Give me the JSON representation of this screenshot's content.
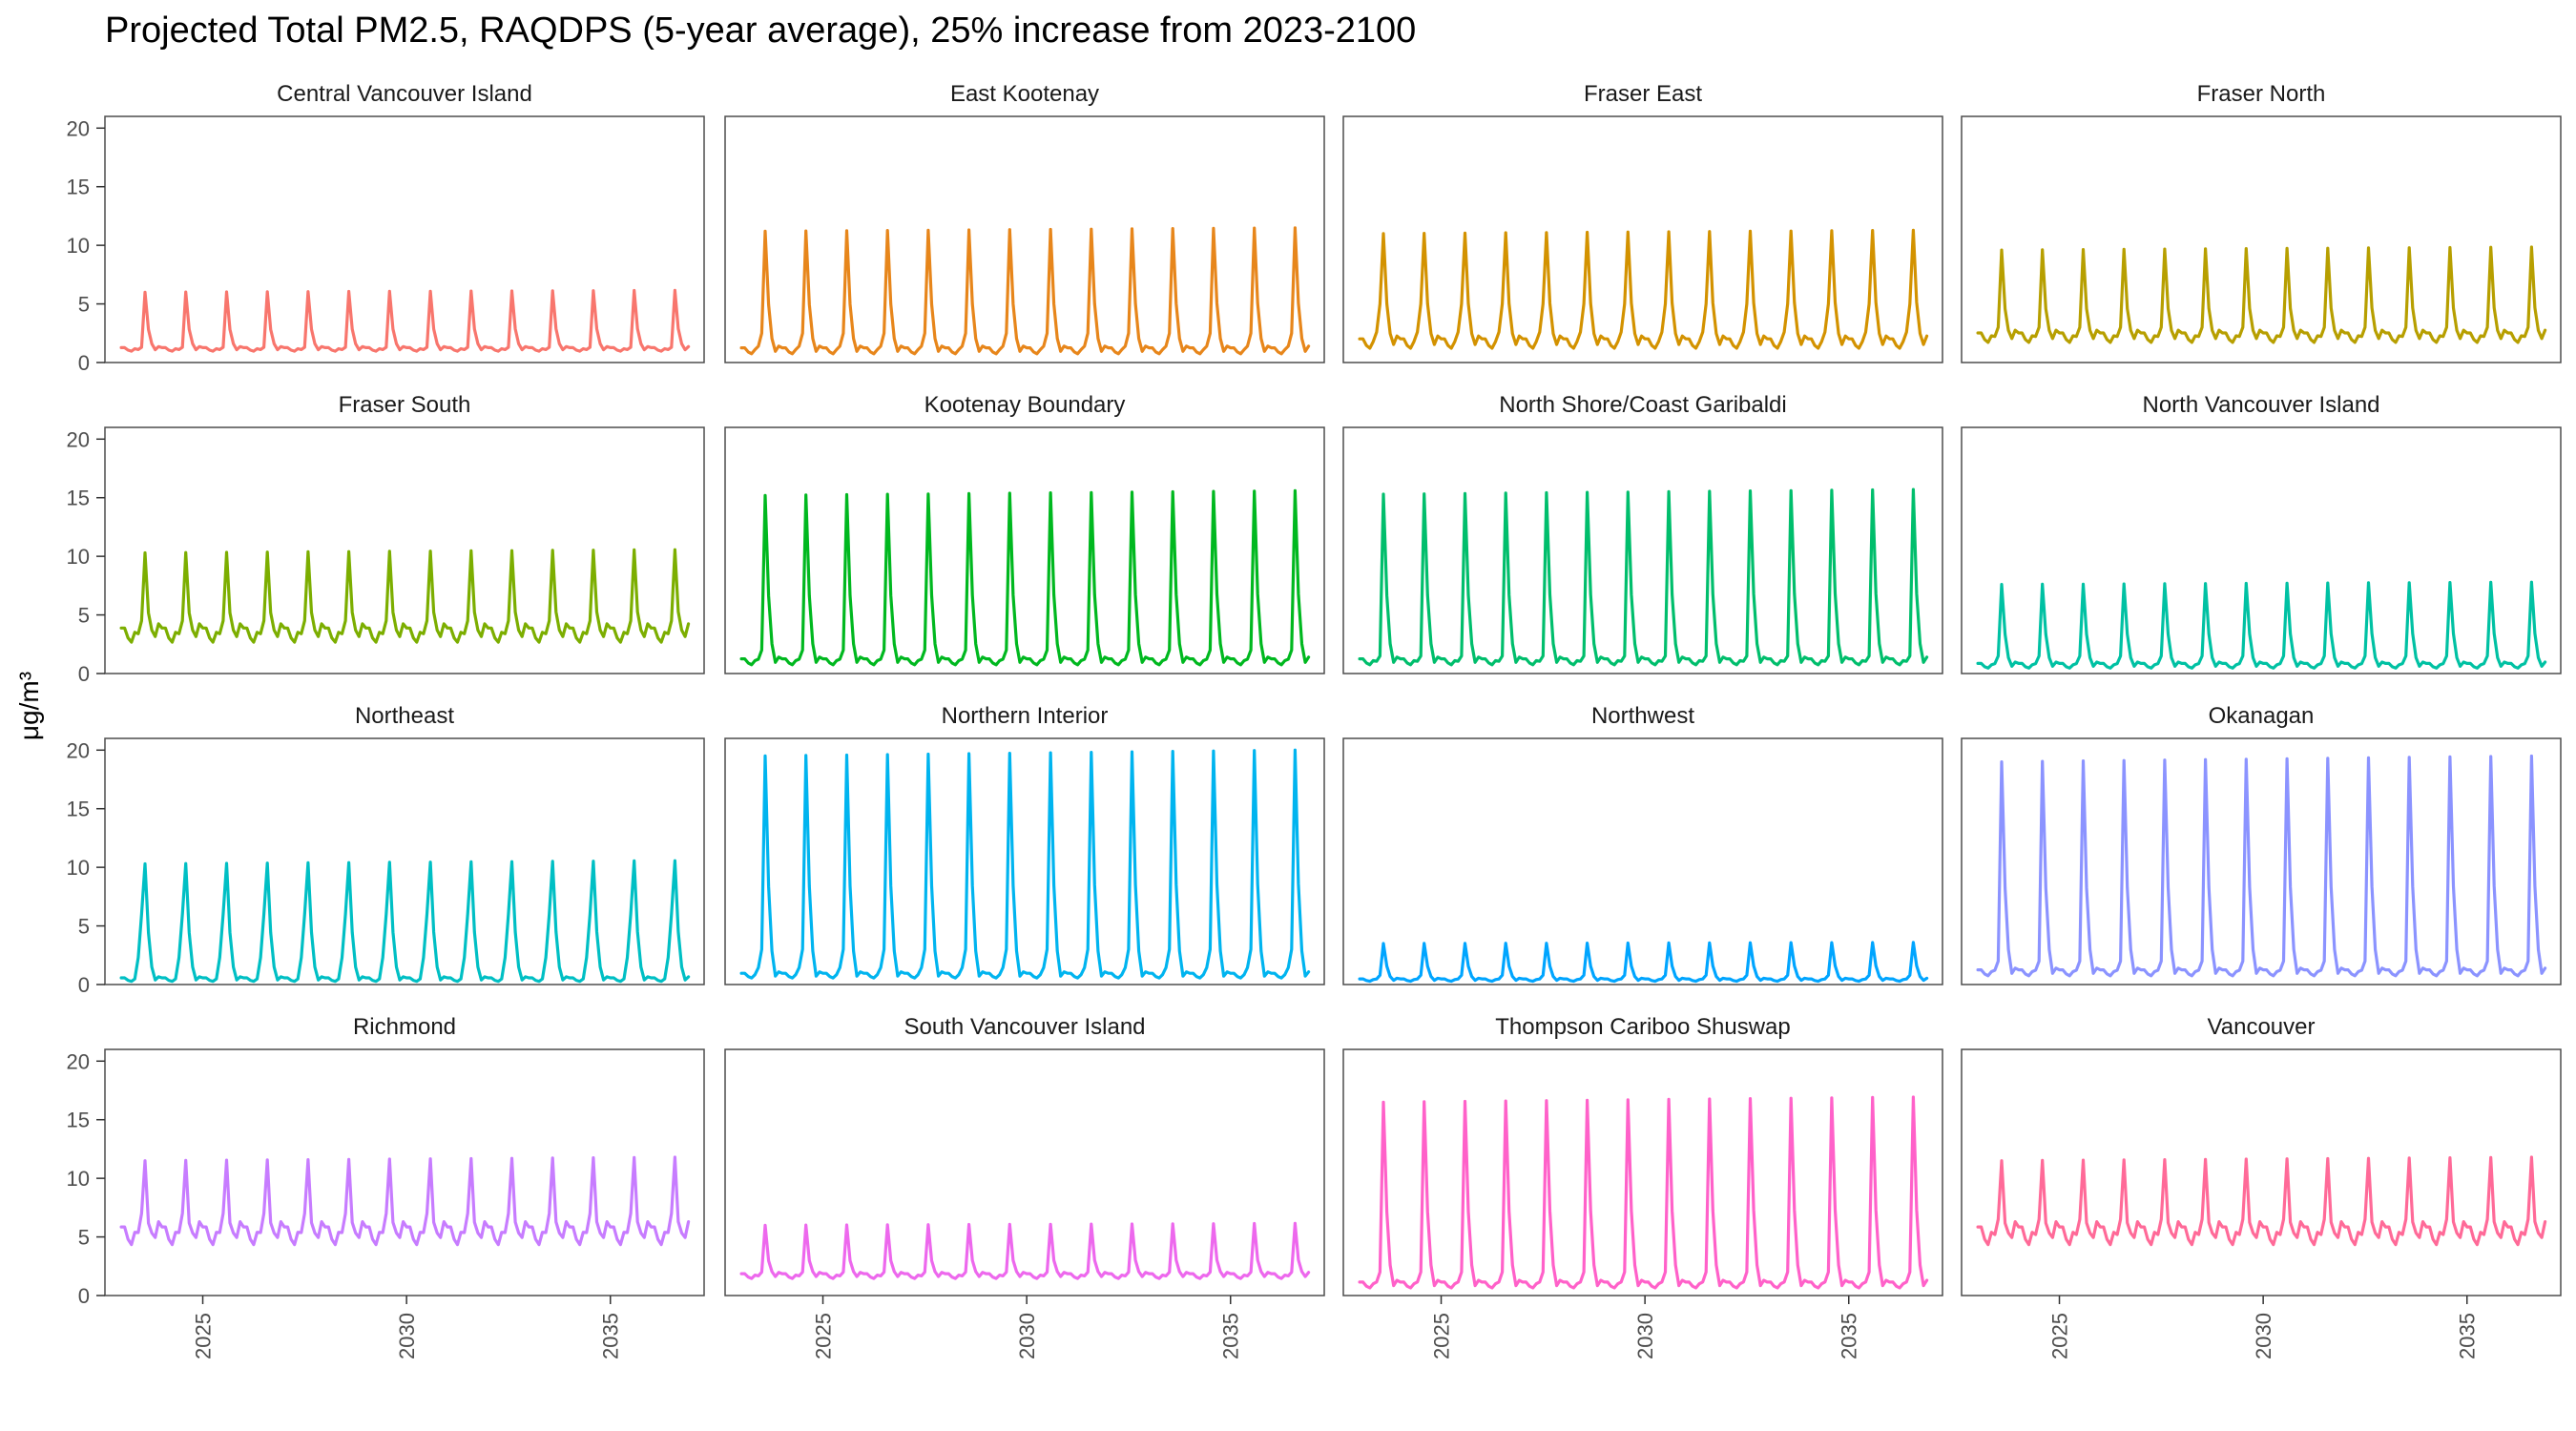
{
  "chart_data": {
    "type": "line",
    "title": "Projected Total PM2.5, RAQDPS (5-year average), 25% increase from 2023-2100",
    "ylabel": "μg/m³",
    "xlabel": "",
    "ylim": [
      0,
      21
    ],
    "yticks": [
      0,
      5,
      10,
      15,
      20
    ],
    "xlim": [
      2022.6,
      2037.3
    ],
    "xticks": [
      2025,
      2030,
      2035
    ],
    "x_start": 2023.0,
    "grid": false,
    "legend": "none",
    "panels": [
      {
        "name": "Central Vancouver Island",
        "color": "#F8766D",
        "peak": 6.0,
        "base": 1.0,
        "side": 1.3,
        "amp": 0.3
      },
      {
        "name": "East Kootenay",
        "color": "#E7861B",
        "peak": 11.2,
        "base": 0.8,
        "side": 2.5,
        "amp": 0.5
      },
      {
        "name": "Fraser East",
        "color": "#D39200",
        "peak": 11.0,
        "base": 1.3,
        "side": 5.0,
        "amp": 0.8
      },
      {
        "name": "Fraser North",
        "color": "#B79F00",
        "peak": 9.6,
        "base": 1.8,
        "side": 3.0,
        "amp": 0.8
      },
      {
        "name": "Fraser South",
        "color": "#7CAE00",
        "peak": 10.3,
        "base": 2.8,
        "side": 4.5,
        "amp": 1.2
      },
      {
        "name": "Kootenay Boundary",
        "color": "#00B81F",
        "peak": 15.2,
        "base": 0.8,
        "side": 2.0,
        "amp": 0.5
      },
      {
        "name": "North Shore/Coast Garibaldi",
        "color": "#00BE6C",
        "peak": 15.3,
        "base": 0.8,
        "side": 1.5,
        "amp": 0.5
      },
      {
        "name": "North Vancouver Island",
        "color": "#00C1A3",
        "peak": 7.6,
        "base": 0.5,
        "side": 1.5,
        "amp": 0.4
      },
      {
        "name": "Northeast",
        "color": "#00BFC4",
        "peak": 10.3,
        "base": 0.3,
        "side": 6.0,
        "amp": 0.3
      },
      {
        "name": "Northern Interior",
        "color": "#00B4EF",
        "peak": 19.5,
        "base": 0.6,
        "side": 3.0,
        "amp": 0.4
      },
      {
        "name": "Northwest",
        "color": "#00A5FF",
        "peak": 3.5,
        "base": 0.3,
        "side": 0.8,
        "amp": 0.2
      },
      {
        "name": "Okanagan",
        "color": "#8B93FF",
        "peak": 19.0,
        "base": 0.8,
        "side": 2.0,
        "amp": 0.5
      },
      {
        "name": "Richmond",
        "color": "#C77CFF",
        "peak": 11.5,
        "base": 4.5,
        "side": 7.0,
        "amp": 1.5
      },
      {
        "name": "South Vancouver Island",
        "color": "#ED68ED",
        "peak": 6.0,
        "base": 1.5,
        "side": 2.0,
        "amp": 0.4
      },
      {
        "name": "Thompson Cariboo Shuswap",
        "color": "#FF61C9",
        "peak": 16.5,
        "base": 0.7,
        "side": 2.0,
        "amp": 0.5
      },
      {
        "name": "Vancouver",
        "color": "#FF6A98",
        "peak": 11.5,
        "base": 4.5,
        "side": 6.5,
        "amp": 1.5
      }
    ]
  }
}
